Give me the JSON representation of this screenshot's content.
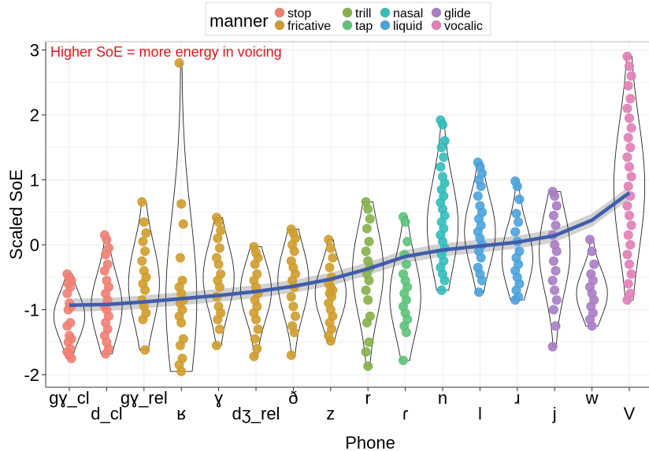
{
  "chart_data": {
    "type": "scatter",
    "subtype": "violin-with-jittered-points-and-smooth-trend",
    "xlabel": "Phone",
    "ylabel": "Scaled SoE",
    "ylim": [
      -2.2,
      3.1
    ],
    "yticks": [
      -2,
      -1,
      0,
      1,
      2,
      3
    ],
    "grid": true,
    "legend": {
      "title": "manner",
      "position": "top",
      "entries": [
        {
          "label": "stop",
          "color": "#F07F73"
        },
        {
          "label": "fricative",
          "color": "#CF9D2E"
        },
        {
          "label": "trill",
          "color": "#87B04A"
        },
        {
          "label": "tap",
          "color": "#5EC27A"
        },
        {
          "label": "nasal",
          "color": "#33BDBB"
        },
        {
          "label": "liquid",
          "color": "#4CA2DB"
        },
        {
          "label": "glide",
          "color": "#A87DC4"
        },
        {
          "label": "vocalic",
          "color": "#E17EB7"
        }
      ]
    },
    "annotation": {
      "text": "Higher SoE = more energy in voicing",
      "color": "#E0171F"
    },
    "categories": [
      "gɣ_cl",
      "d_cl",
      "gɣ_rel",
      "ʁ",
      "ɣ",
      "dʒ_rel",
      "ð",
      "z",
      "r",
      "ɾ",
      "n",
      "l",
      "ɹ",
      "j",
      "w",
      "V"
    ],
    "series": [
      {
        "category": "gɣ_cl",
        "manner": "stop",
        "min": -1.75,
        "max": -0.45,
        "median": -1.1,
        "points": [
          -0.45,
          -0.5,
          -0.55,
          -0.6,
          -0.65,
          -0.75,
          -0.9,
          -0.95,
          -1.0,
          -1.2,
          -1.25,
          -1.4,
          -1.45,
          -1.5,
          -1.6,
          -1.65,
          -1.7,
          -1.75
        ]
      },
      {
        "category": "d_cl",
        "manner": "stop",
        "min": -1.68,
        "max": 0.15,
        "median": -0.95,
        "points": [
          0.15,
          0.08,
          -0.05,
          -0.15,
          -0.3,
          -0.4,
          -0.55,
          -0.65,
          -0.75,
          -0.85,
          -0.95,
          -1.0,
          -1.1,
          -1.2,
          -1.3,
          -1.4,
          -1.5,
          -1.6,
          -1.68
        ]
      },
      {
        "category": "gɣ_rel",
        "manner": "fricative",
        "min": -1.62,
        "max": 0.66,
        "median": -0.6,
        "points": [
          0.66,
          0.35,
          0.18,
          0.05,
          -0.1,
          -0.25,
          -0.4,
          -0.5,
          -0.6,
          -0.7,
          -0.85,
          -0.95,
          -1.05,
          -1.15,
          -1.62
        ]
      },
      {
        "category": "ʁ",
        "manner": "fricative",
        "min": -1.95,
        "max": 2.8,
        "median": -0.85,
        "points": [
          2.8,
          0.63,
          0.32,
          -0.2,
          -0.55,
          -0.65,
          -0.75,
          -0.85,
          -0.9,
          -1.0,
          -1.1,
          -1.2,
          -1.45,
          -1.55,
          -1.75,
          -1.85,
          -1.95
        ]
      },
      {
        "category": "ɣ",
        "manner": "fricative",
        "min": -1.55,
        "max": 0.42,
        "median": -0.5,
        "points": [
          0.42,
          0.35,
          0.22,
          0.1,
          -0.05,
          -0.2,
          -0.3,
          -0.45,
          -0.55,
          -0.65,
          -0.8,
          -0.95,
          -1.05,
          -1.15,
          -1.3,
          -1.55
        ]
      },
      {
        "category": "dʒ_rel",
        "manner": "fricative",
        "min": -1.72,
        "max": -0.03,
        "median": -0.7,
        "points": [
          -0.03,
          -0.12,
          -0.2,
          -0.3,
          -0.45,
          -0.55,
          -0.65,
          -0.75,
          -0.85,
          -0.95,
          -1.05,
          -1.15,
          -1.3,
          -1.45,
          -1.6,
          -1.72
        ]
      },
      {
        "category": "ð",
        "manner": "fricative",
        "min": -1.7,
        "max": 0.24,
        "median": -0.55,
        "points": [
          0.24,
          0.18,
          0.1,
          0.0,
          -0.1,
          -0.25,
          -0.35,
          -0.45,
          -0.55,
          -0.65,
          -0.8,
          -0.95,
          -1.1,
          -1.25,
          -1.35,
          -1.7
        ]
      },
      {
        "category": "z",
        "manner": "fricative",
        "min": -1.48,
        "max": 0.08,
        "median": -0.75,
        "points": [
          0.08,
          -0.05,
          -0.2,
          -0.35,
          -0.5,
          -0.6,
          -0.65,
          -0.7,
          -0.75,
          -0.8,
          -0.9,
          -1.0,
          -1.1,
          -1.2,
          -1.3,
          -1.4,
          -1.48
        ]
      },
      {
        "category": "r",
        "manner": "trill",
        "min": -1.87,
        "max": 0.66,
        "median": -0.4,
        "points": [
          0.66,
          0.55,
          0.4,
          0.25,
          0.05,
          -0.1,
          -0.25,
          -0.35,
          -0.45,
          -0.55,
          -0.7,
          -0.85,
          -1.1,
          -1.2,
          -1.5,
          -1.65,
          -1.87
        ]
      },
      {
        "category": "ɾ",
        "manner": "tap",
        "min": -1.78,
        "max": 0.43,
        "median": -0.8,
        "points": [
          0.43,
          0.35,
          0.05,
          -0.15,
          -0.3,
          -0.45,
          -0.55,
          -0.65,
          -0.75,
          -0.85,
          -0.95,
          -1.05,
          -1.15,
          -1.25,
          -1.35,
          -1.78
        ]
      },
      {
        "category": "n",
        "manner": "nasal",
        "min": -0.7,
        "max": 1.92,
        "median": 0.3,
        "points": [
          1.92,
          1.85,
          1.6,
          1.5,
          1.35,
          1.2,
          1.05,
          0.95,
          0.85,
          0.75,
          0.65,
          0.55,
          0.45,
          0.35,
          0.25,
          0.15,
          0.05,
          -0.05,
          -0.15,
          -0.25,
          -0.35,
          -0.45,
          -0.55,
          -0.7
        ]
      },
      {
        "category": "l",
        "manner": "liquid",
        "min": -0.73,
        "max": 1.27,
        "median": 0.2,
        "points": [
          1.27,
          1.2,
          1.1,
          1.0,
          0.9,
          0.75,
          0.6,
          0.5,
          0.4,
          0.3,
          0.2,
          0.1,
          0.0,
          -0.1,
          -0.2,
          -0.35,
          -0.45,
          -0.55,
          -0.73
        ]
      },
      {
        "category": "ɹ",
        "manner": "liquid",
        "min": -0.85,
        "max": 0.98,
        "median": -0.2,
        "points": [
          0.98,
          0.9,
          0.7,
          0.48,
          0.35,
          0.2,
          0.05,
          -0.1,
          -0.2,
          -0.3,
          -0.4,
          -0.5,
          -0.6,
          -0.7,
          -0.8,
          -0.85
        ]
      },
      {
        "category": "j",
        "manner": "glide",
        "min": -1.57,
        "max": 0.82,
        "median": -0.1,
        "points": [
          0.82,
          0.75,
          0.6,
          0.45,
          0.3,
          0.15,
          0.0,
          -0.1,
          -0.25,
          -0.4,
          -0.55,
          -0.7,
          -0.85,
          -1.0,
          -1.25,
          -1.57
        ]
      },
      {
        "category": "w",
        "manner": "glide",
        "min": -1.25,
        "max": 0.08,
        "median": -0.75,
        "points": [
          0.08,
          -0.1,
          -0.3,
          -0.45,
          -0.55,
          -0.65,
          -0.75,
          -0.85,
          -0.95,
          -1.05,
          -1.15,
          -1.25
        ]
      },
      {
        "category": "V",
        "manner": "vocalic",
        "min": -0.85,
        "max": 2.9,
        "median": 0.9,
        "points": [
          2.9,
          2.75,
          2.6,
          2.45,
          2.25,
          2.1,
          1.95,
          1.8,
          1.65,
          1.5,
          1.35,
          1.2,
          1.05,
          0.9,
          0.75,
          0.6,
          0.45,
          0.3,
          0.15,
          0.0,
          -0.15,
          -0.3,
          -0.45,
          -0.6,
          -0.75,
          -0.85
        ]
      }
    ],
    "trend": {
      "color": "#3F5DAA",
      "values": [
        -0.93,
        -0.92,
        -0.88,
        -0.83,
        -0.78,
        -0.72,
        -0.64,
        -0.53,
        -0.37,
        -0.18,
        -0.08,
        -0.02,
        0.04,
        0.14,
        0.38,
        0.8
      ],
      "band": 0.1
    }
  }
}
